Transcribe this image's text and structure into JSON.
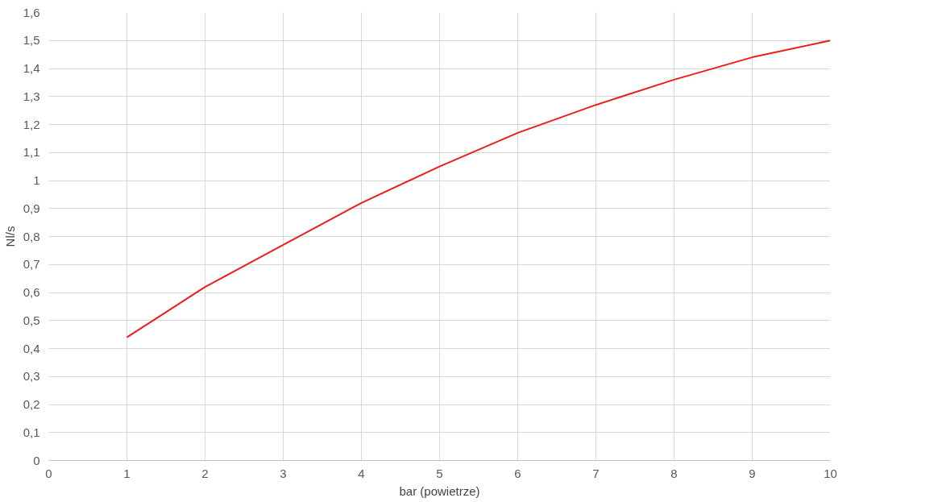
{
  "chart_data": {
    "type": "line",
    "xlabel": "bar (powietrze)",
    "ylabel": "Nl/s",
    "x": [
      1,
      2,
      3,
      4,
      5,
      6,
      7,
      8,
      9,
      10
    ],
    "series": [
      {
        "color": "#ee1c1c",
        "values": [
          0.44,
          0.62,
          0.77,
          0.92,
          1.05,
          1.17,
          1.27,
          1.36,
          1.44,
          1.5
        ]
      }
    ],
    "xlim": [
      0,
      10
    ],
    "xticks": [
      0,
      1,
      2,
      3,
      4,
      5,
      6,
      7,
      8,
      9,
      10
    ],
    "ylim": [
      0,
      1.6
    ],
    "yticks": [
      0,
      {
        "value": 0.1,
        "label": "0,1"
      },
      {
        "value": 0.2,
        "label": "0,2"
      },
      {
        "value": 0.3,
        "label": "0,3"
      },
      {
        "value": 0.4,
        "label": "0,4"
      },
      {
        "value": 0.5,
        "label": "0,5"
      },
      {
        "value": 0.6,
        "label": "0,6"
      },
      {
        "value": 0.7,
        "label": "0,7"
      },
      {
        "value": 0.8,
        "label": "0,8"
      },
      {
        "value": 0.9,
        "label": "0,9"
      },
      1,
      {
        "value": 1.1,
        "label": "1,1"
      },
      {
        "value": 1.2,
        "label": "1,2"
      },
      {
        "value": 1.3,
        "label": "1,3"
      },
      {
        "value": 1.4,
        "label": "1,4"
      },
      {
        "value": 1.5,
        "label": "1,5"
      },
      {
        "value": 1.6,
        "label": "1,6"
      }
    ],
    "grid": true,
    "marker": "none",
    "line_style": "solid"
  }
}
